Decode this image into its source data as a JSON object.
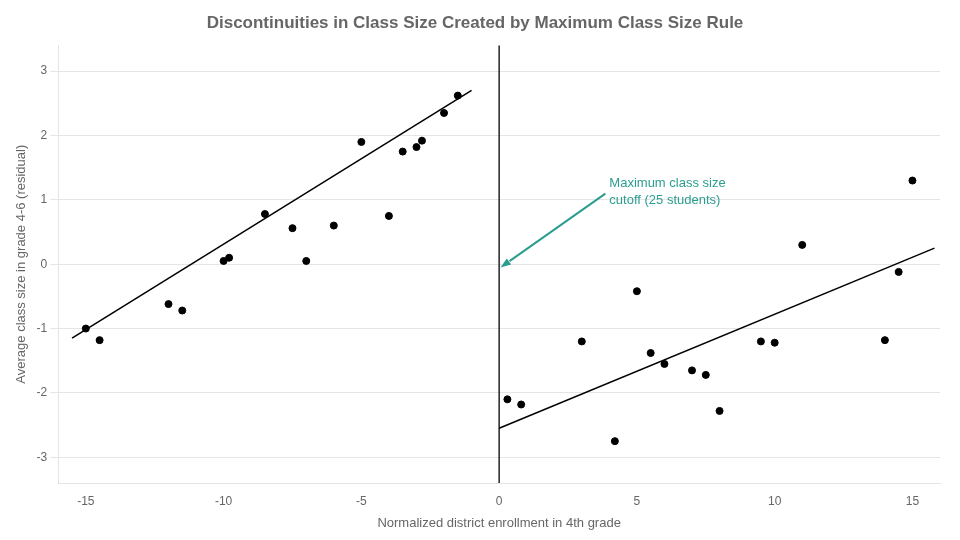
{
  "chart_data": {
    "type": "scatter",
    "title": "Discontinuities in Class Size Created by Maximum Class Size Rule",
    "xlabel": "Normalized district enrollment in 4th grade",
    "ylabel": "Average class size in grade 4-6 (residual)",
    "xlim": [
      -16,
      16
    ],
    "ylim": [
      -3.4,
      3.4
    ],
    "xticks": [
      -15,
      -10,
      -5,
      0,
      5,
      10,
      15
    ],
    "yticks": [
      -3,
      -2,
      -1,
      0,
      1,
      2,
      3
    ],
    "grid": "y",
    "legend": false,
    "series": [
      {
        "type": "scatter",
        "color": "black",
        "x": [
          -15.0,
          -14.5,
          -12.0,
          -11.5,
          -10.0,
          -9.8,
          -8.5,
          -7.5,
          -7.0,
          -6.0,
          -5.0,
          -4.0,
          -3.5,
          -3.0,
          -2.8,
          -2.0,
          -1.5
        ],
        "values": [
          -1.0,
          -1.18,
          -0.62,
          -0.72,
          0.05,
          0.1,
          0.78,
          0.56,
          0.05,
          0.6,
          1.9,
          0.75,
          1.75,
          1.82,
          1.92,
          2.35,
          2.62
        ]
      },
      {
        "type": "scatter",
        "color": "black",
        "x": [
          0.3,
          0.8,
          3.0,
          4.2,
          5.0,
          5.5,
          6.0,
          7.0,
          7.5,
          8.0,
          9.5,
          10.0,
          11.0,
          14.0,
          14.5,
          15.0
        ],
        "values": [
          -2.1,
          -2.18,
          -1.2,
          -2.75,
          -0.42,
          -1.38,
          -1.55,
          -1.65,
          -1.72,
          -2.28,
          -1.2,
          -1.22,
          0.3,
          -1.18,
          -0.12,
          1.3
        ]
      },
      {
        "type": "line",
        "color": "black",
        "x": [
          -15.5,
          -1.0
        ],
        "values": [
          -1.15,
          2.7
        ]
      },
      {
        "type": "line",
        "color": "black",
        "x": [
          0.0,
          15.8
        ],
        "values": [
          -2.55,
          0.25
        ]
      },
      {
        "type": "vline",
        "color": "black",
        "x": [
          0
        ]
      }
    ],
    "annotations": [
      {
        "text": "Maximum class size\ncutoff (25 students)",
        "color": "#2a9d8f",
        "x": 0.05,
        "y": -0.05,
        "text_x": 4.0,
        "text_y": 1.35
      }
    ]
  }
}
